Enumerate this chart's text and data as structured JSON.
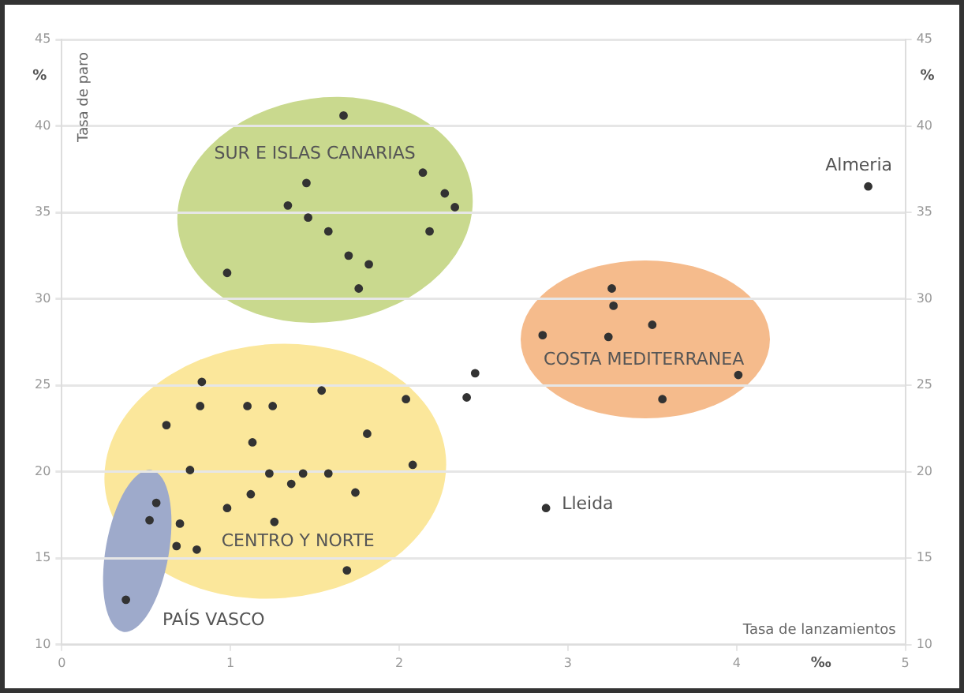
{
  "chart_data": {
    "type": "scatter",
    "xlabel": "Tasa de lanzamientos",
    "x": [
      1.67,
      2.14,
      2.27,
      2.33,
      2.18,
      1.45,
      1.34,
      1.46,
      1.58,
      1.7,
      1.82,
      1.76,
      0.98,
      4.78,
      3.26,
      3.27,
      3.5,
      2.85,
      3.24,
      4.01,
      3.56,
      2.87,
      2.45,
      2.4,
      0.83,
      1.54,
      2.04,
      0.82,
      1.1,
      1.25,
      0.62,
      1.81,
      1.13,
      2.08,
      0.76,
      1.23,
      1.43,
      1.58,
      1.36,
      1.12,
      1.74,
      0.98,
      1.26,
      0.7,
      0.68,
      0.8,
      1.69,
      0.56,
      0.52,
      0.38
    ],
    "series": [
      {
        "color": "#333333",
        "values": [
          40.6,
          37.3,
          36.1,
          35.3,
          33.9,
          36.7,
          35.4,
          34.7,
          33.9,
          32.5,
          32.0,
          30.6,
          31.5,
          36.5,
          30.6,
          29.6,
          28.5,
          27.9,
          27.8,
          25.6,
          24.2,
          17.9,
          25.7,
          24.3,
          25.2,
          24.7,
          24.2,
          23.8,
          23.8,
          23.8,
          22.7,
          22.2,
          21.7,
          20.4,
          20.1,
          19.9,
          19.9,
          19.9,
          19.3,
          18.7,
          18.8,
          17.9,
          17.1,
          17.0,
          15.7,
          15.5,
          14.3,
          18.2,
          17.2,
          12.6
        ]
      }
    ],
    "xlim": [
      0,
      5
    ],
    "xticks": [
      0,
      1,
      2,
      3,
      4,
      5
    ],
    "ylim": [
      10,
      45
    ],
    "yticks": [
      10,
      15,
      20,
      25,
      30,
      35,
      40,
      45
    ],
    "y2lim": [
      10,
      45
    ],
    "y2ticks": [
      10,
      15,
      20,
      25,
      30,
      35,
      40,
      45
    ],
    "grid": "y",
    "legend": false,
    "marker": "circle",
    "annotations": [
      "SUR E ISLAS CANARIAS",
      "COSTA MEDITERRANEA",
      "CENTRO Y NORTE",
      "PAÍS VASCO",
      {
        "text": "Almeria",
        "x": 4.78,
        "y": 36.5
      },
      {
        "text": "Lleida",
        "x": 2.87,
        "y": 17.9
      },
      "%",
      "%",
      "‰",
      "Tasa de paro"
    ]
  }
}
